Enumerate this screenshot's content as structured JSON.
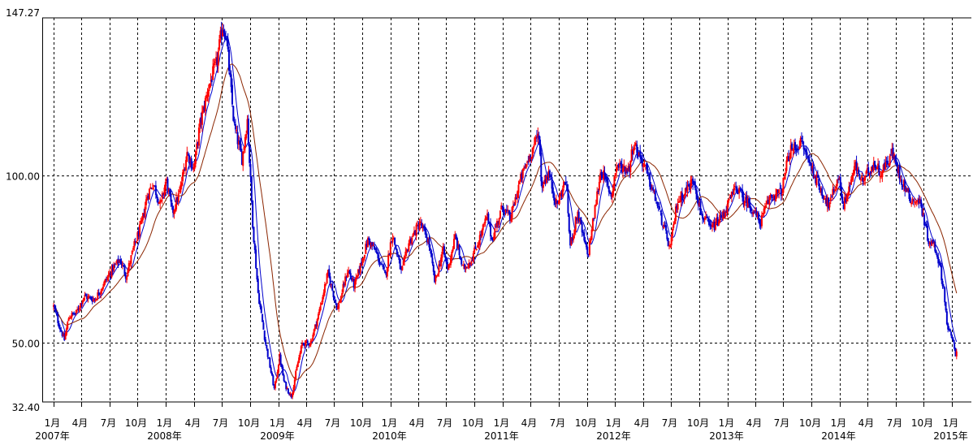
{
  "chart_data": {
    "type": "candlestick",
    "title": "",
    "xlabel": "",
    "ylabel": "",
    "ylim": [
      32.4,
      147.27
    ],
    "y_ticks": [
      {
        "value": 147.27,
        "label": "147.27"
      },
      {
        "value": 100.0,
        "label": "100.00"
      },
      {
        "value": 50.0,
        "label": "50.00"
      },
      {
        "value": 32.4,
        "label": "32.40"
      }
    ],
    "x_range": [
      "2007-01-01",
      "2015-01-16"
    ],
    "x_ticks": [
      {
        "date": "2007-01-01",
        "month": "1月",
        "year": "2007年"
      },
      {
        "date": "2007-04-01",
        "month": "4月"
      },
      {
        "date": "2007-07-01",
        "month": "7月"
      },
      {
        "date": "2007-10-01",
        "month": "10月"
      },
      {
        "date": "2008-01-01",
        "month": "1月",
        "year": "2008年"
      },
      {
        "date": "2008-04-01",
        "month": "4月"
      },
      {
        "date": "2008-07-01",
        "month": "7月"
      },
      {
        "date": "2008-10-01",
        "month": "10月"
      },
      {
        "date": "2009-01-01",
        "month": "1月",
        "year": "2009年"
      },
      {
        "date": "2009-04-01",
        "month": "4月"
      },
      {
        "date": "2009-07-01",
        "month": "7月"
      },
      {
        "date": "2009-10-01",
        "month": "10月"
      },
      {
        "date": "2010-01-01",
        "month": "1月",
        "year": "2010年"
      },
      {
        "date": "2010-04-01",
        "month": "4月"
      },
      {
        "date": "2010-07-01",
        "month": "7月"
      },
      {
        "date": "2010-10-01",
        "month": "10月"
      },
      {
        "date": "2011-01-01",
        "month": "1月",
        "year": "2011年"
      },
      {
        "date": "2011-04-01",
        "month": "4月"
      },
      {
        "date": "2011-07-01",
        "month": "7月"
      },
      {
        "date": "2011-10-01",
        "month": "10月"
      },
      {
        "date": "2012-01-01",
        "month": "1月",
        "year": "2012年"
      },
      {
        "date": "2012-04-01",
        "month": "4月"
      },
      {
        "date": "2012-07-01",
        "month": "7月"
      },
      {
        "date": "2012-10-01",
        "month": "10月"
      },
      {
        "date": "2013-01-01",
        "month": "1月",
        "year": "2013年"
      },
      {
        "date": "2013-04-01",
        "month": "4月"
      },
      {
        "date": "2013-07-01",
        "month": "7月"
      },
      {
        "date": "2013-10-01",
        "month": "10月"
      },
      {
        "date": "2014-01-01",
        "month": "1月",
        "year": "2014年"
      },
      {
        "date": "2014-04-01",
        "month": "4月"
      },
      {
        "date": "2014-07-01",
        "month": "7月"
      },
      {
        "date": "2014-10-01",
        "month": "10月"
      },
      {
        "date": "2015-01-01",
        "month": "1月",
        "year": "2015年"
      }
    ],
    "grid": true,
    "colors": {
      "up": "#ff0000",
      "down": "#0000cc",
      "moving_average": "#8b2500",
      "grid": "#000000"
    },
    "price_path": [
      [
        "2007-01-01",
        61
      ],
      [
        "2007-01-20",
        55
      ],
      [
        "2007-02-05",
        51
      ],
      [
        "2007-02-20",
        58
      ],
      [
        "2007-03-15",
        59
      ],
      [
        "2007-04-10",
        64
      ],
      [
        "2007-05-15",
        63
      ],
      [
        "2007-06-15",
        68
      ],
      [
        "2007-07-10",
        72
      ],
      [
        "2007-08-05",
        75
      ],
      [
        "2007-08-25",
        70
      ],
      [
        "2007-09-20",
        79
      ],
      [
        "2007-10-15",
        86
      ],
      [
        "2007-11-01",
        94
      ],
      [
        "2007-11-20",
        98
      ],
      [
        "2007-12-15",
        91
      ],
      [
        "2008-01-02",
        99
      ],
      [
        "2008-01-22",
        89
      ],
      [
        "2008-02-15",
        95
      ],
      [
        "2008-03-10",
        107
      ],
      [
        "2008-04-01",
        102
      ],
      [
        "2008-04-20",
        115
      ],
      [
        "2008-05-20",
        127
      ],
      [
        "2008-06-15",
        134
      ],
      [
        "2008-07-03",
        145
      ],
      [
        "2008-07-15",
        142
      ],
      [
        "2008-08-10",
        115
      ],
      [
        "2008-09-05",
        105
      ],
      [
        "2008-09-22",
        117
      ],
      [
        "2008-10-10",
        85
      ],
      [
        "2008-10-27",
        65
      ],
      [
        "2008-11-20",
        50
      ],
      [
        "2008-12-19",
        36
      ],
      [
        "2009-01-05",
        46
      ],
      [
        "2009-01-20",
        38
      ],
      [
        "2009-02-12",
        34
      ],
      [
        "2009-03-05",
        44
      ],
      [
        "2009-03-20",
        50
      ],
      [
        "2009-04-15",
        50
      ],
      [
        "2009-05-10",
        58
      ],
      [
        "2009-06-11",
        71
      ],
      [
        "2009-07-12",
        60
      ],
      [
        "2009-08-15",
        72
      ],
      [
        "2009-09-05",
        67
      ],
      [
        "2009-10-20",
        81
      ],
      [
        "2009-11-15",
        77
      ],
      [
        "2009-12-15",
        70
      ],
      [
        "2010-01-06",
        83
      ],
      [
        "2010-02-05",
        71
      ],
      [
        "2010-03-01",
        80
      ],
      [
        "2010-04-06",
        86
      ],
      [
        "2010-05-05",
        80
      ],
      [
        "2010-05-25",
        68
      ],
      [
        "2010-06-20",
        78
      ],
      [
        "2010-07-06",
        72
      ],
      [
        "2010-07-30",
        82
      ],
      [
        "2010-08-24",
        72
      ],
      [
        "2010-09-20",
        75
      ],
      [
        "2010-10-20",
        82
      ],
      [
        "2010-11-11",
        88
      ],
      [
        "2010-11-26",
        81
      ],
      [
        "2010-12-31",
        91
      ],
      [
        "2011-01-25",
        87
      ],
      [
        "2011-02-24",
        98
      ],
      [
        "2011-03-20",
        104
      ],
      [
        "2011-04-29",
        113
      ],
      [
        "2011-05-06",
        97
      ],
      [
        "2011-05-30",
        101
      ],
      [
        "2011-06-25",
        91
      ],
      [
        "2011-07-25",
        99
      ],
      [
        "2011-08-08",
        79
      ],
      [
        "2011-09-01",
        89
      ],
      [
        "2011-10-04",
        76
      ],
      [
        "2011-11-16",
        102
      ],
      [
        "2011-12-20",
        94
      ],
      [
        "2012-01-05",
        103
      ],
      [
        "2012-02-15",
        102
      ],
      [
        "2012-03-01",
        110
      ],
      [
        "2012-04-05",
        103
      ],
      [
        "2012-05-15",
        92
      ],
      [
        "2012-06-28",
        78
      ],
      [
        "2012-07-20",
        92
      ],
      [
        "2012-08-20",
        96
      ],
      [
        "2012-09-14",
        99
      ],
      [
        "2012-10-05",
        89
      ],
      [
        "2012-11-07",
        84
      ],
      [
        "2012-12-15",
        88
      ],
      [
        "2013-01-30",
        97
      ],
      [
        "2013-02-20",
        93
      ],
      [
        "2013-03-10",
        92
      ],
      [
        "2013-04-17",
        86
      ],
      [
        "2013-05-20",
        94
      ],
      [
        "2013-06-25",
        95
      ],
      [
        "2013-07-20",
        107
      ],
      [
        "2013-08-28",
        110
      ],
      [
        "2013-09-20",
        105
      ],
      [
        "2013-10-25",
        97
      ],
      [
        "2013-11-27",
        91
      ],
      [
        "2013-12-27",
        100
      ],
      [
        "2014-01-13",
        91
      ],
      [
        "2014-02-20",
        103
      ],
      [
        "2014-03-15",
        98
      ],
      [
        "2014-04-20",
        104
      ],
      [
        "2014-05-15",
        101
      ],
      [
        "2014-06-20",
        107
      ],
      [
        "2014-07-15",
        100
      ],
      [
        "2014-08-20",
        93
      ],
      [
        "2014-09-20",
        92
      ],
      [
        "2014-10-15",
        81
      ],
      [
        "2014-11-05",
        79
      ],
      [
        "2014-11-20",
        74
      ],
      [
        "2014-12-05",
        66
      ],
      [
        "2014-12-16",
        55
      ],
      [
        "2015-01-05",
        50
      ],
      [
        "2015-01-13",
        45.9
      ],
      [
        "2015-01-16",
        48.7
      ]
    ]
  }
}
